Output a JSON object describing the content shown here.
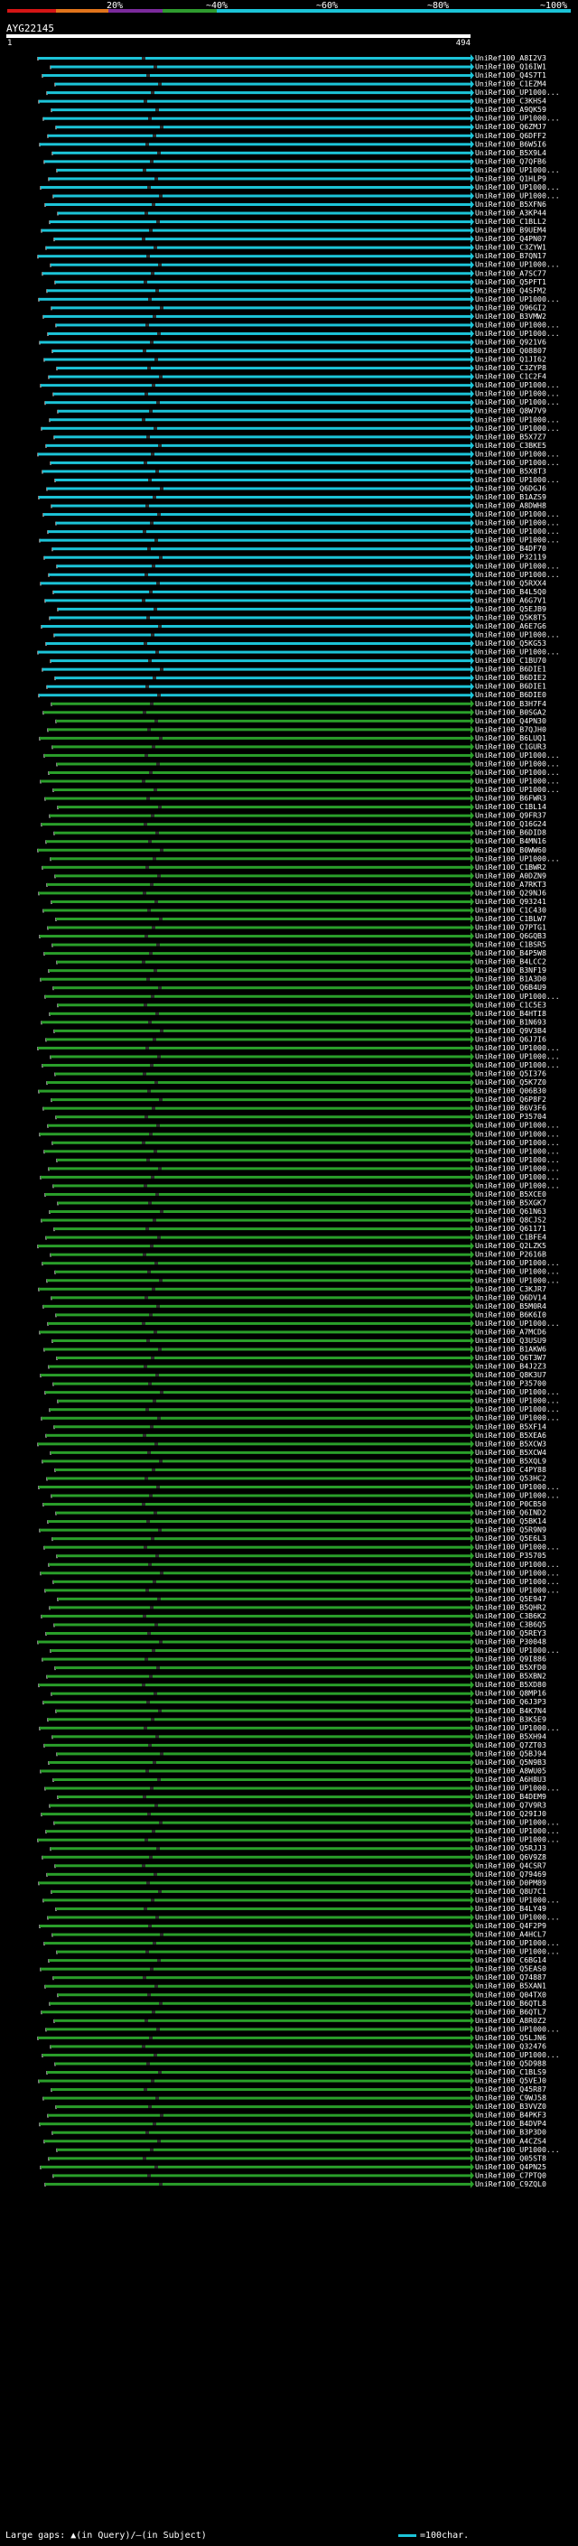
{
  "score_bar": {
    "labels": [
      "20%",
      "~40%",
      "~60%",
      "~80%",
      "~100%"
    ],
    "colors": [
      "#d41515",
      "#e0741c",
      "#7b2a9c",
      "#2f9b2f",
      "#1cc4d8"
    ]
  },
  "query": {
    "name": "AYG22145",
    "start": "1",
    "end": "494"
  },
  "colors": {
    "cyan": "#1cc4d8",
    "green": "#2a9f2a",
    "gap": "#2b2b2b",
    "text": "#ffffff"
  },
  "legend": {
    "large_gaps": "Large gaps: ▲(in Query)/―(in Subject)",
    "scale": "=100char."
  },
  "hits": [
    "UniRef100_A8I2V3",
    "UniRef100_Q16IW1",
    "UniRef100_Q4S7T1",
    "UniRef100_C1EZM4",
    "UniRef100_UP1000...",
    "UniRef100_C3KHS4",
    "UniRef100_A9QK59",
    "UniRef100_UP1000...",
    "UniRef100_Q6ZMJ7",
    "UniRef100_Q6DFF2",
    "UniRef100_B6W5I6",
    "UniRef100_B5X9L4",
    "UniRef100_Q7QFB6",
    "UniRef100_UP1000...",
    "UniRef100_Q1HLP9",
    "UniRef100_UP1000...",
    "UniRef100_UP1000...",
    "UniRef100_B5XFN6",
    "UniRef100_A3KP44",
    "UniRef100_C1BLL2",
    "UniRef100_B9UEM4",
    "UniRef100_Q4PN07",
    "UniRef100_C3ZYW1",
    "UniRef100_B7QN17",
    "UniRef100_UP1000...",
    "UniRef100_A7SC77",
    "UniRef100_Q5PFT1",
    "UniRef100_Q4SFM2",
    "UniRef100_UP1000...",
    "UniRef100_Q96GI2",
    "UniRef100_B3VMW2",
    "UniRef100_UP1000...",
    "UniRef100_UP1000...",
    "UniRef100_Q921V6",
    "UniRef100_Q08807",
    "UniRef100_Q1JI62",
    "UniRef100_C3ZYP8",
    "UniRef100_C1C2F4",
    "UniRef100_UP1000...",
    "UniRef100_UP1000...",
    "UniRef100_UP1000...",
    "UniRef100_Q8W7V9",
    "UniRef100_UP1000...",
    "UniRef100_UP1000...",
    "UniRef100_B5X7Z7",
    "UniRef100_C3BKE5",
    "UniRef100_UP1000...",
    "UniRef100_UP1000...",
    "UniRef100_B5X8T3",
    "UniRef100_UP1000...",
    "UniRef100_Q6DGJ6",
    "UniRef100_B1AZS9",
    "UniRef100_A8DWH8",
    "UniRef100_UP1000...",
    "UniRef100_UP1000...",
    "UniRef100_UP1000...",
    "UniRef100_UP1000...",
    "UniRef100_B4DF70",
    "UniRef100_P32119",
    "UniRef100_UP1000...",
    "UniRef100_UP1000...",
    "UniRef100_Q5RXX4",
    "UniRef100_B4L5Q0",
    "UniRef100_A6G7V1",
    "UniRef100_Q5EJB9",
    "UniRef100_Q5K8T5",
    "UniRef100_A6E7G6",
    "UniRef100_UP1000...",
    "UniRef100_Q5KG53",
    "UniRef100_UP1000...",
    "UniRef100_C1BU70",
    "UniRef100_B6DIE1",
    "UniRef100_B6DIE2",
    "UniRef100_B6DIE1",
    "UniRef100_B6DIE0",
    "UniRef100_B3H7F4",
    "UniRef100_B0SGA2",
    "UniRef100_Q4PN30",
    "UniRef100_B7QJH0",
    "UniRef100_B6LUQ1",
    "UniRef100_C1GUR3",
    "UniRef100_UP1000...",
    "UniRef100_UP1000...",
    "UniRef100_UP1000...",
    "UniRef100_UP1000...",
    "UniRef100_UP1000...",
    "UniRef100_B6FWR3",
    "UniRef100_C1BL14",
    "UniRef100_Q9FR37",
    "UniRef100_Q16G24",
    "UniRef100_B6DID8",
    "UniRef100_B4MN16",
    "UniRef100_B0WW60",
    "UniRef100_UP1000...",
    "UniRef100_C1BWR2",
    "UniRef100_A0DZN9",
    "UniRef100_A7RKT3",
    "UniRef100_Q29NJ6",
    "UniRef100_Q93241",
    "UniRef100_C1C430",
    "UniRef100_C1BLW7",
    "UniRef100_Q7PTG1",
    "UniRef100_Q6GQB3",
    "UniRef100_C1BSR5",
    "UniRef100_B4P5W8",
    "UniRef100_B4LCC2",
    "UniRef100_B3NF19",
    "UniRef100_B1A3D0",
    "UniRef100_Q6B4U9",
    "UniRef100_UP1000...",
    "UniRef100_C1C5E3",
    "UniRef100_B4HTI8",
    "UniRef100_B1N693",
    "UniRef100_Q9V3B4",
    "UniRef100_Q6J7I6",
    "UniRef100_UP1000...",
    "UniRef100_UP1000...",
    "UniRef100_UP1000...",
    "UniRef100_Q5I376",
    "UniRef100_Q5K7Z0",
    "UniRef100_Q06B30",
    "UniRef100_Q6P8F2",
    "UniRef100_B6V3F6",
    "UniRef100_P35704",
    "UniRef100_UP1000...",
    "UniRef100_UP1000...",
    "UniRef100_UP1000...",
    "UniRef100_UP1000...",
    "UniRef100_UP1000...",
    "UniRef100_UP1000...",
    "UniRef100_UP1000...",
    "UniRef100_UP1000...",
    "UniRef100_B5XCE0",
    "UniRef100_B5XGK7",
    "UniRef100_Q61N63",
    "UniRef100_Q8CJS2",
    "UniRef100_Q61171",
    "UniRef100_C1BFE4",
    "UniRef100_Q2LZK5",
    "UniRef100_P2616B",
    "UniRef100_UP1000...",
    "UniRef100_UP1000...",
    "UniRef100_UP1000...",
    "UniRef100_C3KJR7",
    "UniRef100_Q6DV14",
    "UniRef100_B5M0R4",
    "UniRef100_B6K6I0",
    "UniRef100_UP1000...",
    "UniRef100_A7MCD6",
    "UniRef100_Q3USU9",
    "UniRef100_B1AKW6",
    "UniRef100_Q6T3W7",
    "UniRef100_B4J2Z3",
    "UniRef100_Q8K3U7",
    "UniRef100_P35700",
    "UniRef100_UP1000...",
    "UniRef100_UP1000...",
    "UniRef100_UP1000...",
    "UniRef100_UP1000...",
    "UniRef100_B5XF14",
    "UniRef100_B5XEA6",
    "UniRef100_B5XCW3",
    "UniRef100_B5XCW4",
    "UniRef100_B5XQL9",
    "UniRef100_C4PY88",
    "UniRef100_Q53HC2",
    "UniRef100_UP1000...",
    "UniRef100_UP1000...",
    "UniRef100_P0CB50",
    "UniRef100_Q6IND2",
    "UniRef100_Q5BK14",
    "UniRef100_Q5R9N9",
    "UniRef100_Q5E6L3",
    "UniRef100_UP1000...",
    "UniRef100_P35705",
    "UniRef100_UP1000...",
    "UniRef100_UP1000...",
    "UniRef100_UP1000...",
    "UniRef100_UP1000...",
    "UniRef100_Q5E947",
    "UniRef100_B5QHR2",
    "UniRef100_C3B6K2",
    "UniRef100_C3B6Q5",
    "UniRef100_Q5REY3",
    "UniRef100_P30048",
    "UniRef100_UP1000...",
    "UniRef100_Q9I886",
    "UniRef100_B5XFD0",
    "UniRef100_B5XBN2",
    "UniRef100_B5XD80",
    "UniRef100_Q8MP16",
    "UniRef100_Q6J3P3",
    "UniRef100_B4K7N4",
    "UniRef100_B3K5E9",
    "UniRef100_UP1000...",
    "UniRef100_B5XH94",
    "UniRef100_Q7ZT03",
    "UniRef100_Q5BJ94",
    "UniRef100_Q5N9B3",
    "UniRef100_A8WU05",
    "UniRef100_A6H8U3",
    "UniRef100_UP1000...",
    "UniRef100_B4DEM9",
    "UniRef100_Q7V9R3",
    "UniRef100_Q29IJ0",
    "UniRef100_UP1000...",
    "UniRef100_UP1000...",
    "UniRef100_UP1000...",
    "UniRef100_Q5RJJ3",
    "UniRef100_Q6V9Z8",
    "UniRef100_Q4CSR7",
    "UniRef100_Q79469",
    "UniRef100_D0PM89",
    "UniRef100_Q8U7C1",
    "UniRef100_UP1000...",
    "UniRef100_B4LY49",
    "UniRef100_UP1000...",
    "UniRef100_Q4F2P9",
    "UniRef100_A4HCL7",
    "UniRef100_UP1000...",
    "UniRef100_UP1000...",
    "UniRef100_C6BG14",
    "UniRef100_Q5EAS0",
    "UniRef100_Q74887",
    "UniRef100_B5XAN1",
    "UniRef100_Q04TX0",
    "UniRef100_B6QTL8",
    "UniRef100_B6QTL7",
    "UniRef100_A8R0Z2",
    "UniRef100_UP1000...",
    "UniRef100_Q5LJN6",
    "UniRef100_Q32476",
    "UniRef100_UP1000...",
    "UniRef100_Q5D988",
    "UniRef100_C1BLS9",
    "UniRef100_Q5VEJ0",
    "UniRef100_Q45R87",
    "UniRef100_C9WJ58",
    "UniRef100_B3VVZ0",
    "UniRef100_B4PKF3",
    "UniRef100_B4DVP4",
    "UniRef100_B3P3D0",
    "UniRef100_A4CZS4",
    "UniRef100_UP1000...",
    "UniRef100_Q05ST8",
    "UniRef100_Q4PN25",
    "UniRef100_C7PTQ0",
    "UniRef100_C9ZQL0"
  ]
}
